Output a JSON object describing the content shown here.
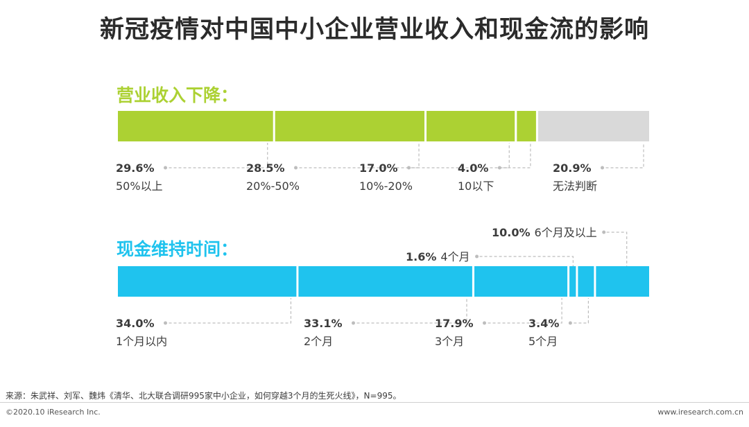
{
  "title": "新冠疫情对中国中小企业营业收入和现金流的影响",
  "chart_data": [
    {
      "type": "bar",
      "orientation": "horizontal-stacked-100",
      "title": "营业收入下降：",
      "color": "#acd133",
      "segments": [
        {
          "value": 29.6,
          "value_label": "29.6%",
          "category": "50%以上",
          "color": "#acd133"
        },
        {
          "value": 28.5,
          "value_label": "28.5%",
          "category": "20%-50%",
          "color": "#acd133"
        },
        {
          "value": 17.0,
          "value_label": "17.0%",
          "category": "10%-20%",
          "color": "#acd133"
        },
        {
          "value": 4.0,
          "value_label": "4.0%",
          "category": "10以下",
          "color": "#acd133"
        },
        {
          "value": 20.9,
          "value_label": "20.9%",
          "category": "无法判断",
          "color": "#d9d9d9"
        }
      ]
    },
    {
      "type": "bar",
      "orientation": "horizontal-stacked-100",
      "title": "现金维持时间：",
      "color": "#1fc3ee",
      "segments": [
        {
          "value": 34.0,
          "value_label": "34.0%",
          "category": "1个月以内",
          "color": "#1fc3ee"
        },
        {
          "value": 33.1,
          "value_label": "33.1%",
          "category": "2个月",
          "color": "#1fc3ee"
        },
        {
          "value": 17.9,
          "value_label": "17.9%",
          "category": "3个月",
          "color": "#1fc3ee"
        },
        {
          "value": 1.6,
          "value_label": "1.6%",
          "category": "4个月",
          "color": "#1fc3ee"
        },
        {
          "value": 3.4,
          "value_label": "3.4%",
          "category": "5个月",
          "color": "#1fc3ee"
        },
        {
          "value": 10.0,
          "value_label": "10.0%",
          "category": "6个月及以上",
          "color": "#1fc3ee"
        }
      ]
    }
  ],
  "footer": {
    "source": "来源：朱武祥、刘军、魏炜《清华、北大联合调研995家中小企业，如何穿越3个月的生死火线》，N=995。",
    "copyright": "©2020.10 iResearch Inc.",
    "website": "www.iresearch.com.cn"
  }
}
